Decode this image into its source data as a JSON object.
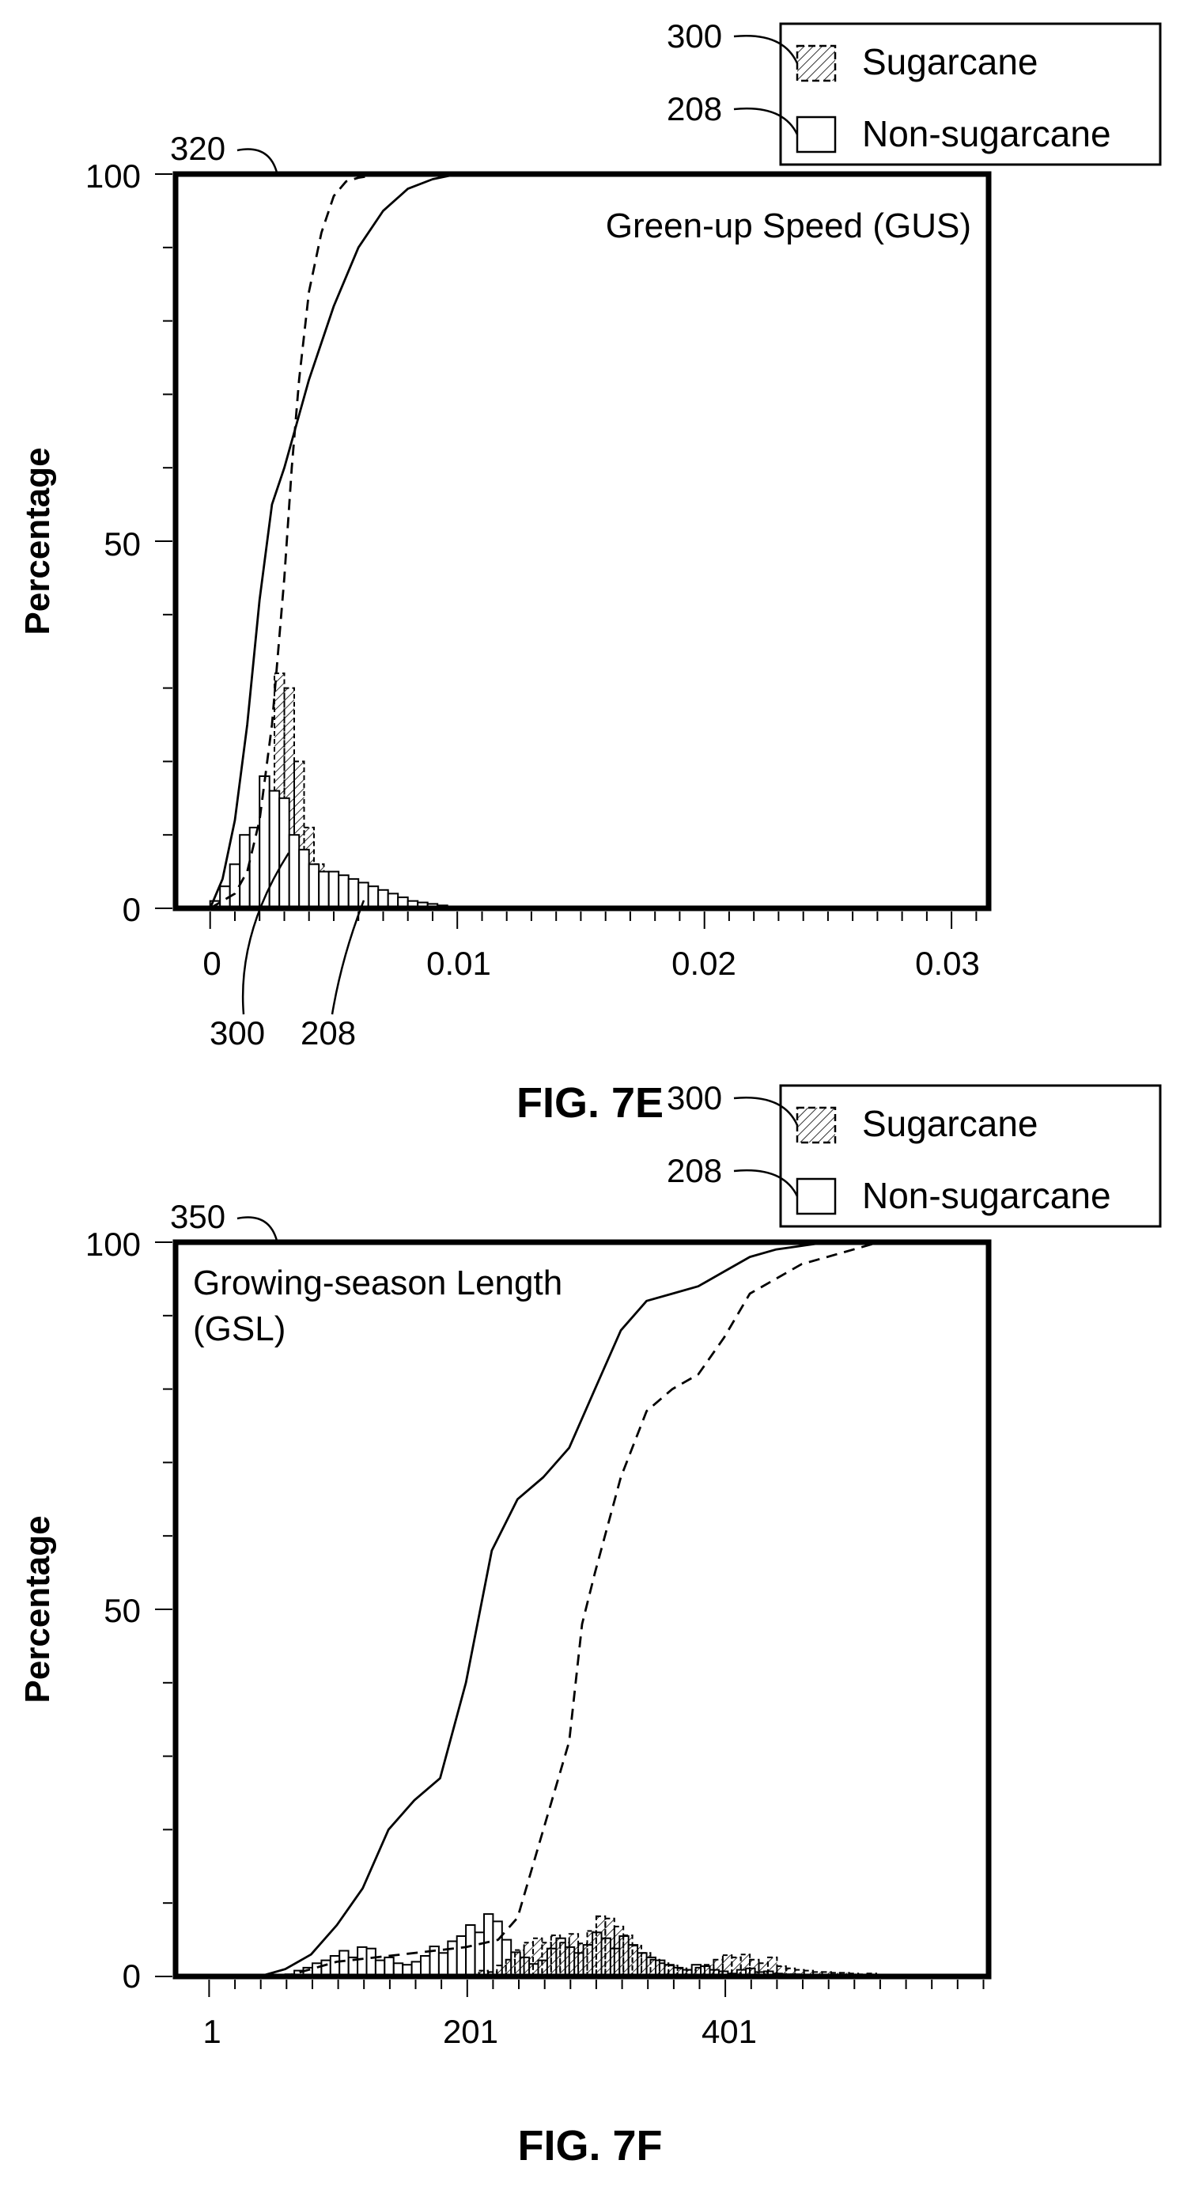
{
  "chart_data": [
    {
      "type": "area",
      "figure_label": "FIG. 7E",
      "annotation": "Green-up Speed (GUS)",
      "ylabel": "Percentage",
      "xlabel": "",
      "reference_number": "320",
      "x_ticks": [
        "0",
        "0.01",
        "0.02",
        "0.03"
      ],
      "y_ticks": [
        "0",
        "50",
        "100"
      ],
      "xlim": [
        -0.0014,
        0.0315
      ],
      "ylim": [
        0,
        100
      ],
      "grid": false,
      "legend_position": "top-right",
      "legend": [
        {
          "ref": "300",
          "label": "Sugarcane",
          "pattern": "hatched"
        },
        {
          "ref": "208",
          "label": "Non-sugarcane",
          "pattern": "open"
        }
      ],
      "pointer_labels": [
        "300",
        "208"
      ],
      "series": [
        {
          "name": "Sugarcane",
          "kind": "cumulative",
          "style": "dashed",
          "x": [
            0,
            0.001,
            0.0015,
            0.002,
            0.0025,
            0.003,
            0.0033,
            0.0036,
            0.004,
            0.0045,
            0.005,
            0.0055,
            0.006,
            0.007,
            0.01,
            0.02,
            0.031
          ],
          "values": [
            0,
            2,
            5,
            12,
            25,
            45,
            60,
            72,
            84,
            92,
            97,
            99,
            99.5,
            100,
            100,
            100,
            100
          ]
        },
        {
          "name": "Non-sugarcane",
          "kind": "cumulative",
          "style": "solid",
          "x": [
            0,
            0.0005,
            0.001,
            0.0015,
            0.002,
            0.0025,
            0.003,
            0.0035,
            0.004,
            0.005,
            0.006,
            0.007,
            0.008,
            0.009,
            0.01,
            0.02,
            0.031
          ],
          "values": [
            0,
            4,
            12,
            25,
            42,
            55,
            60,
            66,
            72,
            82,
            90,
            95,
            98,
            99.3,
            100,
            100,
            100
          ]
        },
        {
          "name": "Sugarcane",
          "kind": "histogram",
          "style": "hatched",
          "bin_width": 0.0004,
          "x": [
            0.0018,
            0.0022,
            0.0026,
            0.003,
            0.0034,
            0.0038,
            0.0042
          ],
          "values": [
            4,
            15,
            32,
            30,
            20,
            11,
            6
          ]
        },
        {
          "name": "Non-sugarcane",
          "kind": "histogram",
          "style": "open",
          "bin_width": 0.0004,
          "x": [
            0,
            0.0004,
            0.0008,
            0.0012,
            0.0016,
            0.002,
            0.0024,
            0.0028,
            0.0032,
            0.0036,
            0.004,
            0.0044,
            0.0048,
            0.0052,
            0.0056,
            0.006,
            0.0064,
            0.0068,
            0.0072,
            0.0076,
            0.008,
            0.0084,
            0.0088,
            0.0092,
            0.0096
          ],
          "values": [
            1,
            3,
            6,
            10,
            11,
            18,
            16,
            15,
            10,
            8,
            6,
            5,
            5,
            4.5,
            4,
            3.5,
            3,
            2.5,
            2,
            1.5,
            1,
            0.8,
            0.6,
            0.4,
            0.2
          ]
        }
      ]
    },
    {
      "type": "area",
      "figure_label": "FIG. 7F",
      "annotation_line1": "Growing-season Length",
      "annotation_line2": "(GSL)",
      "ylabel": "Percentage",
      "xlabel": "",
      "reference_number": "350",
      "x_ticks": [
        "1",
        "201",
        "401"
      ],
      "y_ticks": [
        "0",
        "50",
        "100"
      ],
      "xlim": [
        -25,
        605
      ],
      "ylim": [
        0,
        100
      ],
      "grid": false,
      "legend_position": "top-right",
      "legend": [
        {
          "ref": "300",
          "label": "Sugarcane",
          "pattern": "hatched"
        },
        {
          "ref": "208",
          "label": "Non-sugarcane",
          "pattern": "open"
        }
      ],
      "series": [
        {
          "name": "Non-sugarcane",
          "kind": "cumulative",
          "style": "solid",
          "x": [
            1,
            40,
            60,
            80,
            100,
            120,
            140,
            160,
            180,
            200,
            220,
            240,
            260,
            280,
            300,
            320,
            340,
            360,
            380,
            400,
            420,
            440,
            460,
            480,
            500,
            520
          ],
          "values": [
            0,
            0,
            1,
            3,
            7,
            12,
            20,
            24,
            27,
            40,
            58,
            65,
            68,
            72,
            80,
            88,
            92,
            93,
            94,
            96,
            98,
            99,
            99.5,
            100,
            100,
            100
          ]
        },
        {
          "name": "Sugarcane",
          "kind": "cumulative",
          "style": "dashed",
          "x": [
            1,
            60,
            100,
            150,
            200,
            225,
            240,
            260,
            280,
            290,
            300,
            320,
            340,
            360,
            380,
            400,
            420,
            440,
            460,
            480,
            500,
            520
          ],
          "values": [
            0,
            0,
            2,
            3,
            4,
            5,
            8,
            20,
            32,
            48,
            55,
            68,
            77,
            80,
            82,
            87,
            93,
            95,
            97,
            98,
            99,
            100
          ]
        },
        {
          "name": "Non-sugarcane",
          "kind": "histogram",
          "style": "open",
          "bin_width": 7,
          "x": [
            60,
            67,
            74,
            81,
            88,
            95,
            102,
            109,
            116,
            123,
            130,
            137,
            144,
            151,
            158,
            165,
            172,
            179,
            186,
            193,
            200,
            207,
            214,
            221,
            228,
            235,
            242,
            249,
            256,
            263,
            270,
            277,
            284,
            291,
            298,
            305,
            312,
            319,
            326,
            333,
            340,
            347,
            354,
            361,
            368,
            375,
            382,
            389,
            396,
            403,
            410,
            417,
            424,
            431,
            438,
            445,
            452,
            459
          ],
          "values": [
            0.3,
            0.8,
            1.2,
            1.8,
            2.2,
            2.8,
            3.5,
            2.6,
            4,
            3.8,
            2.2,
            2.6,
            1.8,
            1.6,
            2,
            2.8,
            4.1,
            3.2,
            4.8,
            5.5,
            7,
            6,
            8.5,
            7.5,
            5,
            3.3,
            2.6,
            1.7,
            2.2,
            3.8,
            5.2,
            4,
            3.2,
            4.3,
            6,
            5.2,
            3.8,
            5.5,
            4.3,
            3.2,
            2.6,
            2.2,
            1.6,
            1.2,
            0.9,
            1.6,
            1.4,
            0.9,
            0.7,
            0.4,
            0.9,
            1.1,
            0.6,
            0.7,
            0.4,
            0.3,
            0.3,
            0.2
          ]
        },
        {
          "name": "Sugarcane",
          "kind": "histogram",
          "style": "hatched",
          "bin_width": 7,
          "x": [
            210,
            217,
            224,
            231,
            238,
            245,
            252,
            259,
            266,
            273,
            280,
            287,
            294,
            301,
            308,
            315,
            322,
            329,
            336,
            343,
            350,
            357,
            364,
            371,
            378,
            385,
            392,
            399,
            406,
            413,
            420,
            427,
            434,
            441,
            448,
            455,
            462,
            469,
            476,
            483,
            490,
            497,
            504,
            511
          ],
          "values": [
            0.8,
            0.6,
            1.5,
            2.3,
            3.6,
            4.6,
            5.2,
            4.6,
            5.6,
            4.6,
            5.8,
            4.5,
            6.2,
            8.2,
            7.9,
            6.8,
            5.6,
            4.2,
            3.2,
            2.3,
            1.8,
            1.5,
            1.1,
            0.9,
            1.2,
            1.6,
            2.3,
            2.9,
            2.6,
            3,
            2.3,
            1.8,
            2.6,
            1.4,
            1.1,
            0.9,
            0.8,
            0.6,
            0.6,
            0.5,
            0.5,
            0.4,
            0.3,
            0.4
          ]
        }
      ]
    }
  ]
}
